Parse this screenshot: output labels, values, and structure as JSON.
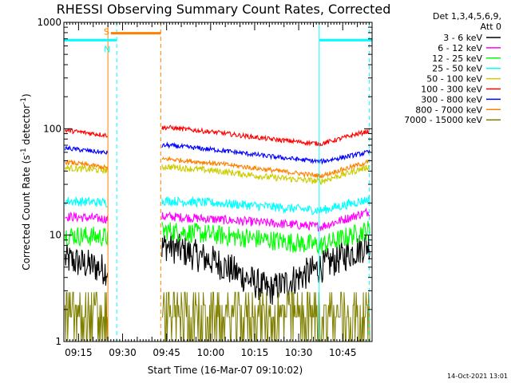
{
  "chart_data": {
    "type": "line",
    "title": "RHESSI Observing Summary Count Rates, Corrected",
    "xlabel": "Start Time (16-Mar-07 09:10:02)",
    "ylabel_main": "Corrected Count Rate (s",
    "ylabel_sup1": "-1",
    "ylabel_mid": " detector",
    "ylabel_sup2": "-1",
    "ylabel_end": ")",
    "y_scale": "log",
    "ylim": [
      1,
      1000
    ],
    "y_ticks": [
      {
        "value": 1,
        "label": "1"
      },
      {
        "value": 10,
        "label": "10"
      },
      {
        "value": 100,
        "label": "100"
      },
      {
        "value": 1000,
        "label": "1000"
      }
    ],
    "x_range_min": [
      0,
      105
    ],
    "x_ticks": [
      {
        "t": 5,
        "label": "09:15"
      },
      {
        "t": 20,
        "label": "09:30"
      },
      {
        "t": 35,
        "label": "09:45"
      },
      {
        "t": 50,
        "label": "10:00"
      },
      {
        "t": 65,
        "label": "10:15"
      },
      {
        "t": 80,
        "label": "10:30"
      },
      {
        "t": 95,
        "label": "10:45"
      }
    ],
    "legend_header": [
      "Det 1,3,4,5,6,9,",
      "Att 0"
    ],
    "legend_position": "right",
    "gap_minutes": [
      15,
      33
    ],
    "series": [
      {
        "name": "3 - 6 keV",
        "color": "#000000",
        "values": [
          6,
          4.5,
          8,
          5.5,
          3,
          5,
          8.5
        ],
        "noise": 0.35
      },
      {
        "name": "6 - 12 keV",
        "color": "#ff00ff",
        "values": [
          15,
          14,
          15,
          14,
          13,
          12,
          17
        ],
        "noise": 0.1
      },
      {
        "name": "12 - 25 keV",
        "color": "#00ff00",
        "values": [
          10,
          9.5,
          11,
          10,
          9,
          8,
          11.5
        ],
        "noise": 0.22
      },
      {
        "name": "25 - 50 keV",
        "color": "#00ffff",
        "values": [
          21,
          20,
          21,
          20,
          18.5,
          17,
          22
        ],
        "noise": 0.1
      },
      {
        "name": "50 - 100 keV",
        "color": "#cccc00",
        "values": [
          43,
          40,
          44,
          40,
          35,
          32,
          45
        ],
        "noise": 0.07
      },
      {
        "name": "100 - 300 keV",
        "color": "#ff0000",
        "values": [
          97,
          85,
          103,
          92,
          80,
          72,
          97
        ],
        "noise": 0.05
      },
      {
        "name": "300 - 800 keV",
        "color": "#0000ff",
        "values": [
          66,
          58,
          70,
          63,
          55,
          49,
          61
        ],
        "noise": 0.05
      },
      {
        "name": "800 - 7000 keV",
        "color": "#ff8000",
        "values": [
          49,
          42,
          52,
          47,
          41,
          36,
          50
        ],
        "noise": 0.05
      },
      {
        "name": "7000 - 15000 keV",
        "color": "#808000",
        "values": [
          2.2,
          2.2,
          2.2,
          2.2,
          2.2,
          2.2,
          2.2
        ],
        "noise": 0.45
      }
    ],
    "flags": [
      {
        "label": "S",
        "color": "#ff8000",
        "t_start": 16,
        "t_end": 33,
        "value": 790
      },
      {
        "label": "N",
        "color": "#00ffff",
        "t_start": 0,
        "t_end": 18,
        "value": 680
      },
      {
        "label": "",
        "color": "#00ffff",
        "t_start": 87,
        "t_end": 105,
        "value": 680
      }
    ],
    "verticals": [
      {
        "t": 15,
        "color": "#ff8000",
        "dashed": false
      },
      {
        "t": 33,
        "color": "#ff8000",
        "dashed": true
      },
      {
        "t": 18,
        "color": "#00ffff",
        "dashed": true
      },
      {
        "t": 87,
        "color": "#00ffff",
        "dashed": false
      },
      {
        "t": 104,
        "color": "#00ffff",
        "dashed": true
      }
    ],
    "date_stamp": "14-Oct-2021 13:01"
  }
}
